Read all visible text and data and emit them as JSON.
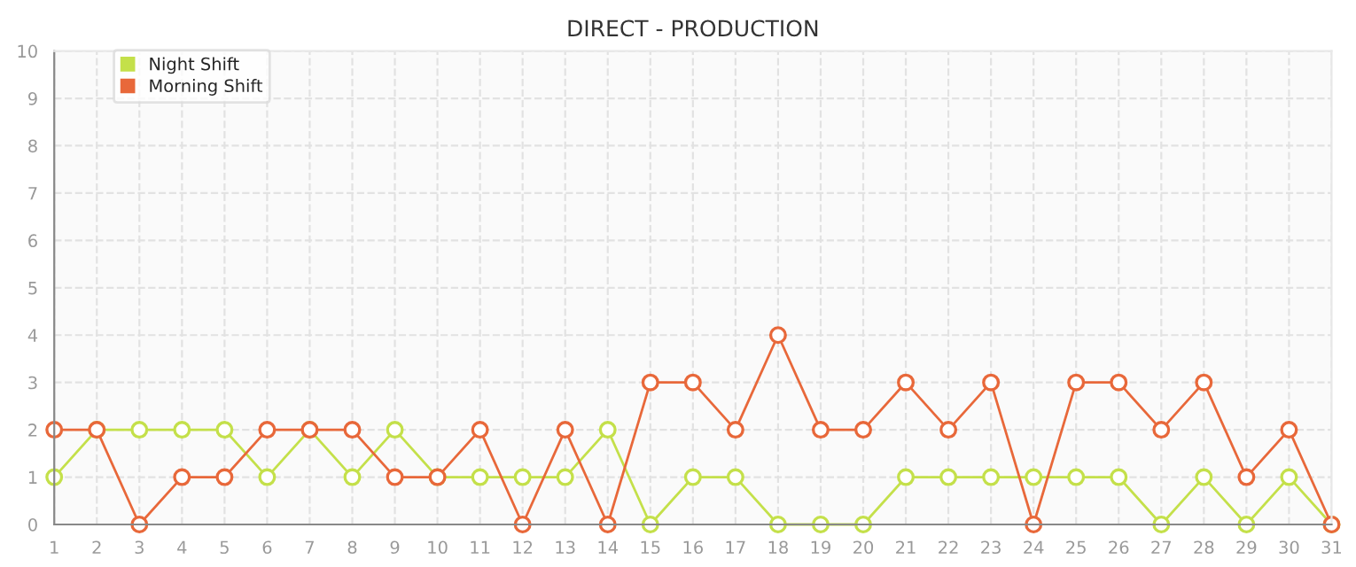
{
  "chart_data": {
    "type": "line",
    "title": "DIRECT - PRODUCTION",
    "x": [
      1,
      2,
      3,
      4,
      5,
      6,
      7,
      8,
      9,
      10,
      11,
      12,
      13,
      14,
      15,
      16,
      17,
      18,
      19,
      20,
      21,
      22,
      23,
      24,
      25,
      26,
      27,
      28,
      29,
      30,
      31
    ],
    "series": [
      {
        "name": "Night Shift",
        "color": "#c4e04a",
        "values": [
          1,
          2,
          2,
          2,
          2,
          1,
          2,
          1,
          2,
          1,
          1,
          1,
          1,
          2,
          0,
          1,
          1,
          0,
          0,
          0,
          1,
          1,
          1,
          1,
          1,
          1,
          0,
          1,
          0,
          1,
          0
        ]
      },
      {
        "name": "Morning Shift",
        "color": "#e8683a",
        "values": [
          2,
          2,
          0,
          1,
          1,
          2,
          2,
          2,
          1,
          1,
          2,
          0,
          2,
          0,
          3,
          3,
          2,
          4,
          2,
          2,
          3,
          2,
          3,
          0,
          3,
          3,
          2,
          3,
          1,
          2,
          0
        ]
      }
    ],
    "xlim": [
      1,
      31
    ],
    "xticks": [
      1,
      2,
      3,
      4,
      5,
      6,
      7,
      8,
      9,
      10,
      11,
      12,
      13,
      14,
      15,
      16,
      17,
      18,
      19,
      20,
      21,
      22,
      23,
      24,
      25,
      26,
      27,
      28,
      29,
      30,
      31
    ],
    "ylim": [
      0,
      10
    ],
    "yticks": [
      0,
      1,
      2,
      3,
      4,
      5,
      6,
      7,
      8,
      9,
      10
    ],
    "grid": true,
    "legend": "top left",
    "marker": "circle",
    "line_style": "solid"
  }
}
